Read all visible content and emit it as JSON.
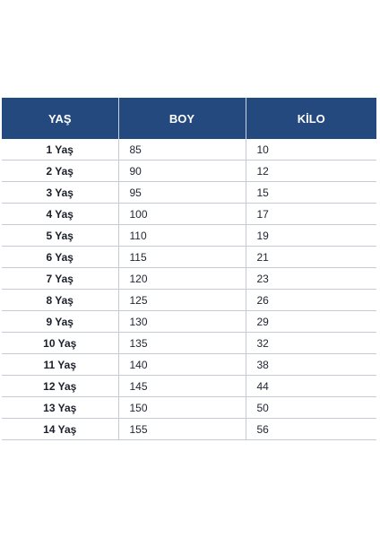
{
  "table": {
    "headers": [
      "YAŞ",
      "BOY",
      "KİLO"
    ],
    "rows": [
      [
        "1 Yaş",
        "85",
        "10"
      ],
      [
        "2 Yaş",
        "90",
        "12"
      ],
      [
        "3 Yaş",
        "95",
        "15"
      ],
      [
        "4 Yaş",
        "100",
        "17"
      ],
      [
        "5 Yaş",
        "110",
        "19"
      ],
      [
        "6 Yaş",
        "115",
        "21"
      ],
      [
        "7 Yaş",
        "120",
        "23"
      ],
      [
        "8 Yaş",
        "125",
        "26"
      ],
      [
        "9 Yaş",
        "130",
        "29"
      ],
      [
        "10 Yaş",
        "135",
        "32"
      ],
      [
        "11 Yaş",
        "140",
        "38"
      ],
      [
        "12 Yaş",
        "145",
        "44"
      ],
      [
        "13 Yaş",
        "150",
        "50"
      ],
      [
        "14 Yaş",
        "155",
        "56"
      ]
    ]
  },
  "colors": {
    "header_background": "#23497f",
    "header_text": "#ffffff",
    "grid_line": "#c4cad6"
  }
}
